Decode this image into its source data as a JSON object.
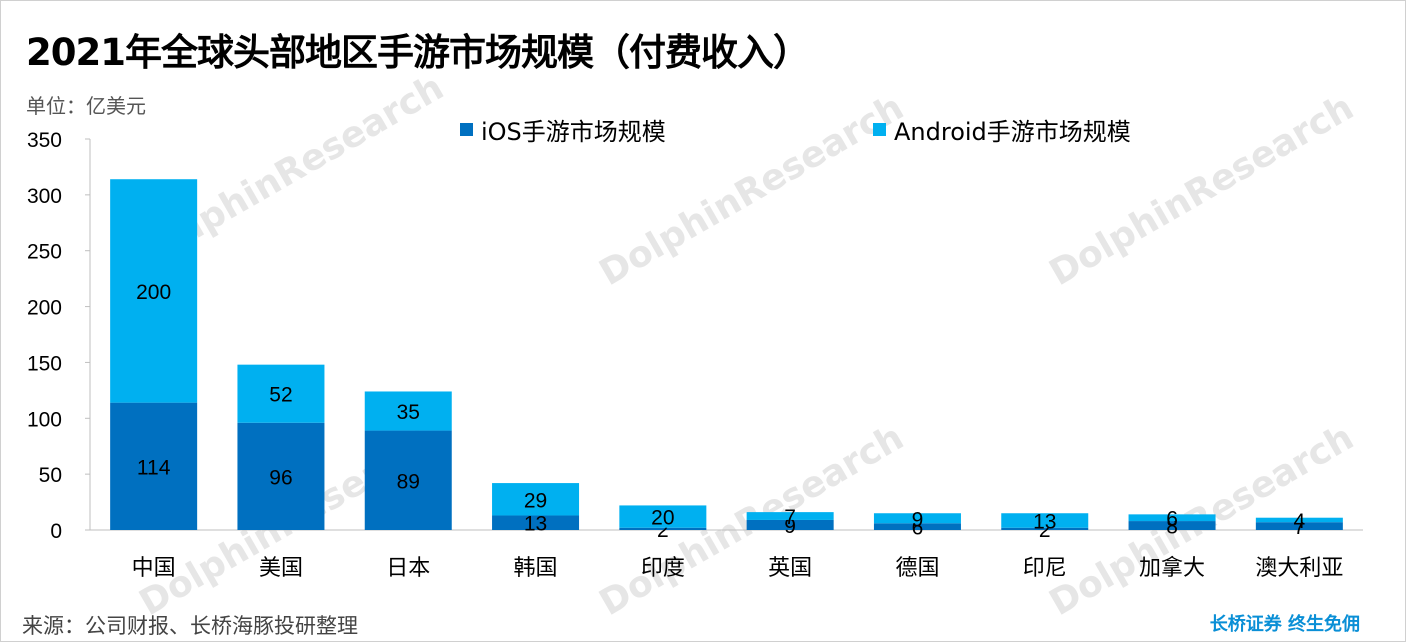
{
  "title": "2021年全球头部地区手游市场规模（付费收入）",
  "unit": "单位：亿美元",
  "source": "来源：公司财报、长桥海豚投研整理",
  "slogan": "长桥证券 终生免佣",
  "watermark": "DolphinResearch",
  "colors": {
    "ios": "#0070c0",
    "android": "#00b0f0",
    "axis": "#bfbfbf"
  },
  "chart_data": {
    "type": "bar",
    "stacked": true,
    "categories": [
      "中国",
      "美国",
      "日本",
      "韩国",
      "印度",
      "英国",
      "德国",
      "印尼",
      "加拿大",
      "澳大利亚"
    ],
    "series": [
      {
        "name": "iOS手游市场规模",
        "values": [
          114,
          96,
          89,
          13,
          2,
          9,
          6,
          2,
          8,
          7
        ]
      },
      {
        "name": "Android手游市场规模",
        "values": [
          200,
          52,
          35,
          29,
          20,
          7,
          9,
          13,
          6,
          4
        ]
      }
    ],
    "ylim": [
      0,
      350
    ],
    "yticks": [
      0,
      50,
      100,
      150,
      200,
      250,
      300,
      350
    ],
    "legend": "top",
    "grid": false
  }
}
